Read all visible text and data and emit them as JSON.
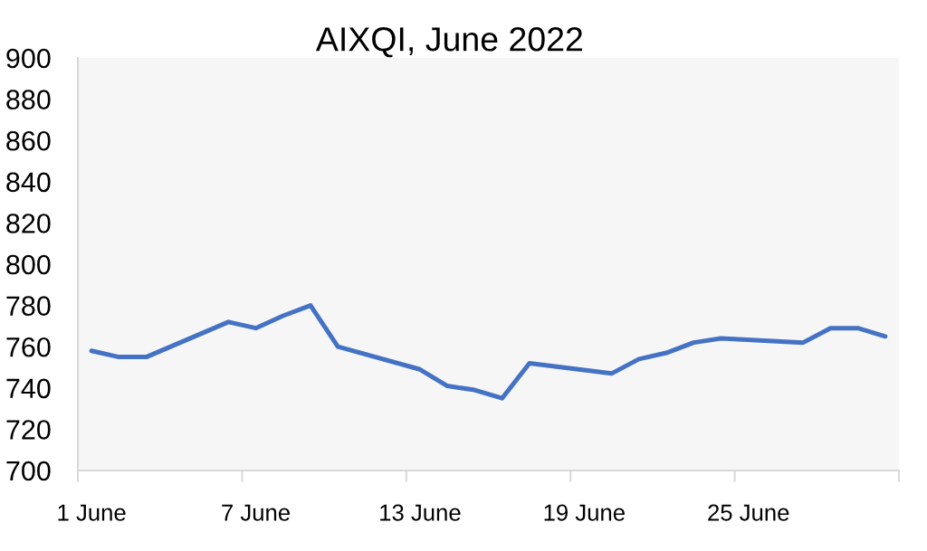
{
  "chart_data": {
    "type": "line",
    "title": "AIXQI, June 2022",
    "x": [
      "2022-06-01",
      "2022-06-02",
      "2022-06-03",
      "2022-06-06",
      "2022-06-07",
      "2022-06-08",
      "2022-06-09",
      "2022-06-10",
      "2022-06-13",
      "2022-06-14",
      "2022-06-15",
      "2022-06-16",
      "2022-06-17",
      "2022-06-20",
      "2022-06-21",
      "2022-06-22",
      "2022-06-23",
      "2022-06-24",
      "2022-06-27",
      "2022-06-28",
      "2022-06-29",
      "2022-06-30"
    ],
    "series": [
      {
        "color": "#4472c4",
        "values": [
          758,
          755,
          755,
          772,
          769,
          775,
          780,
          760,
          749,
          741,
          739,
          735,
          752,
          747,
          754,
          757,
          762,
          764,
          762,
          769,
          769,
          765
        ]
      }
    ],
    "xlim": [
      "2022-05-31T12:00",
      "2022-06-30T12:00"
    ],
    "xticks": [
      {
        "value": "2022-05-31T12:00",
        "label": null
      },
      {
        "value": "2022-06-01",
        "label": "1 June"
      },
      {
        "value": "2022-06-06T12:00",
        "label": null
      },
      {
        "value": "2022-06-07",
        "label": "7 June"
      },
      {
        "value": "2022-06-12T12:00",
        "label": null
      },
      {
        "value": "2022-06-13",
        "label": "13 June"
      },
      {
        "value": "2022-06-18T12:00",
        "label": null
      },
      {
        "value": "2022-06-19",
        "label": "19 June"
      },
      {
        "value": "2022-06-24T12:00",
        "label": null
      },
      {
        "value": "2022-06-25",
        "label": "25 June"
      },
      {
        "value": "2022-06-30T12:00",
        "label": null
      }
    ],
    "ylim": [
      700,
      900
    ],
    "yticks": [
      700,
      720,
      740,
      760,
      780,
      800,
      820,
      840,
      860,
      880,
      900
    ],
    "line_style": "solid",
    "marker": "none"
  }
}
